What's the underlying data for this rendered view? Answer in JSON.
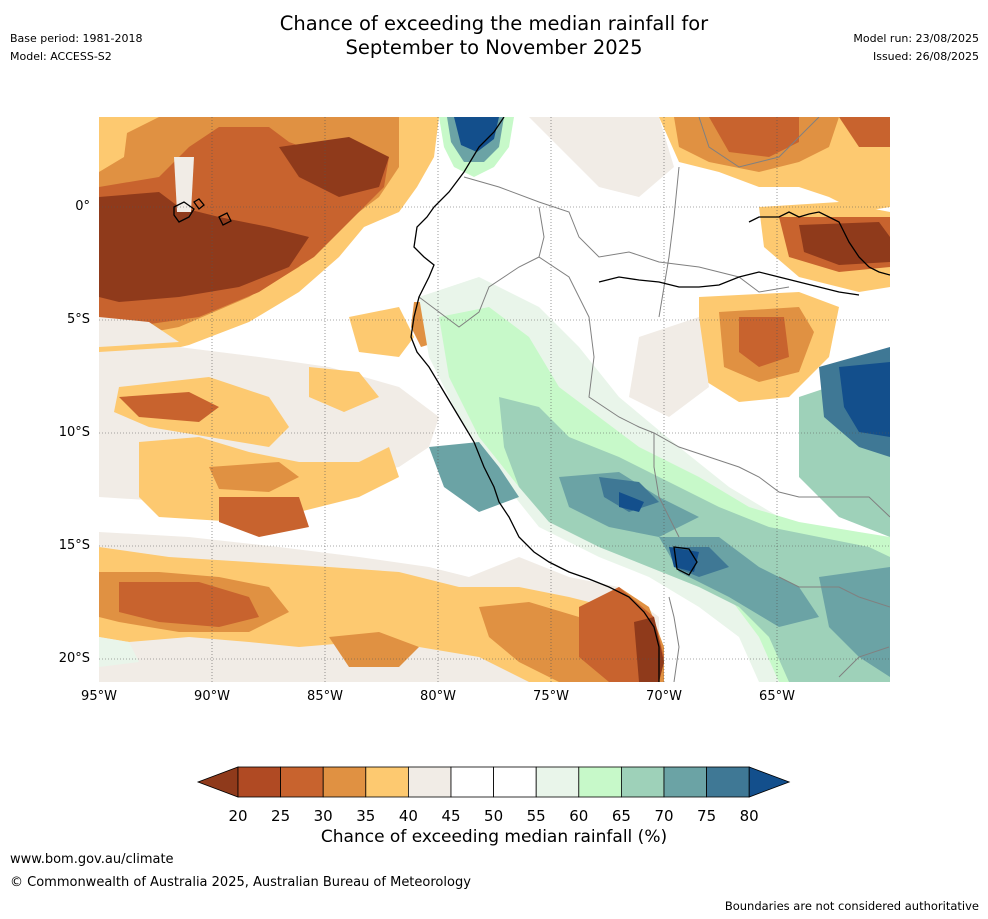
{
  "header": {
    "base_period": "Base period: 1981-2018",
    "model": "Model: ACCESS-S2",
    "model_run": "Model run: 23/08/2025",
    "issued": "Issued: 26/08/2025",
    "title_line1": "Chance of exceeding the median rainfall for",
    "title_line2": "September to November 2025"
  },
  "map": {
    "x_ticks": [
      "95°W",
      "90°W",
      "85°W",
      "80°W",
      "75°W",
      "70°W",
      "65°W"
    ],
    "y_ticks": [
      "0°",
      "5°S",
      "10°S",
      "15°S",
      "20°S"
    ],
    "lon_range": [
      -95,
      -60
    ],
    "lat_range": [
      -21,
      4
    ]
  },
  "colorbar": {
    "ticks": [
      "20",
      "25",
      "30",
      "35",
      "40",
      "45",
      "50",
      "55",
      "60",
      "65",
      "70",
      "75",
      "80"
    ],
    "title": "Chance of exceeding median rainfall (%)",
    "colors": [
      "#8f3a1b",
      "#b04a23",
      "#c8632e",
      "#e09142",
      "#fdc970",
      "#f1ece6",
      "#ffffff",
      "#ffffff",
      "#e9f5ea",
      "#c7f9c9",
      "#9ed1b9",
      "#6ba3a5",
      "#3f7895",
      "#134f8c"
    ]
  },
  "footer": {
    "website": "www.bom.gov.au/climate",
    "copyright": "© Commonwealth of Australia 2025, Australian Bureau of Meteorology",
    "disclaimer": "Boundaries are not considered authoritative"
  }
}
